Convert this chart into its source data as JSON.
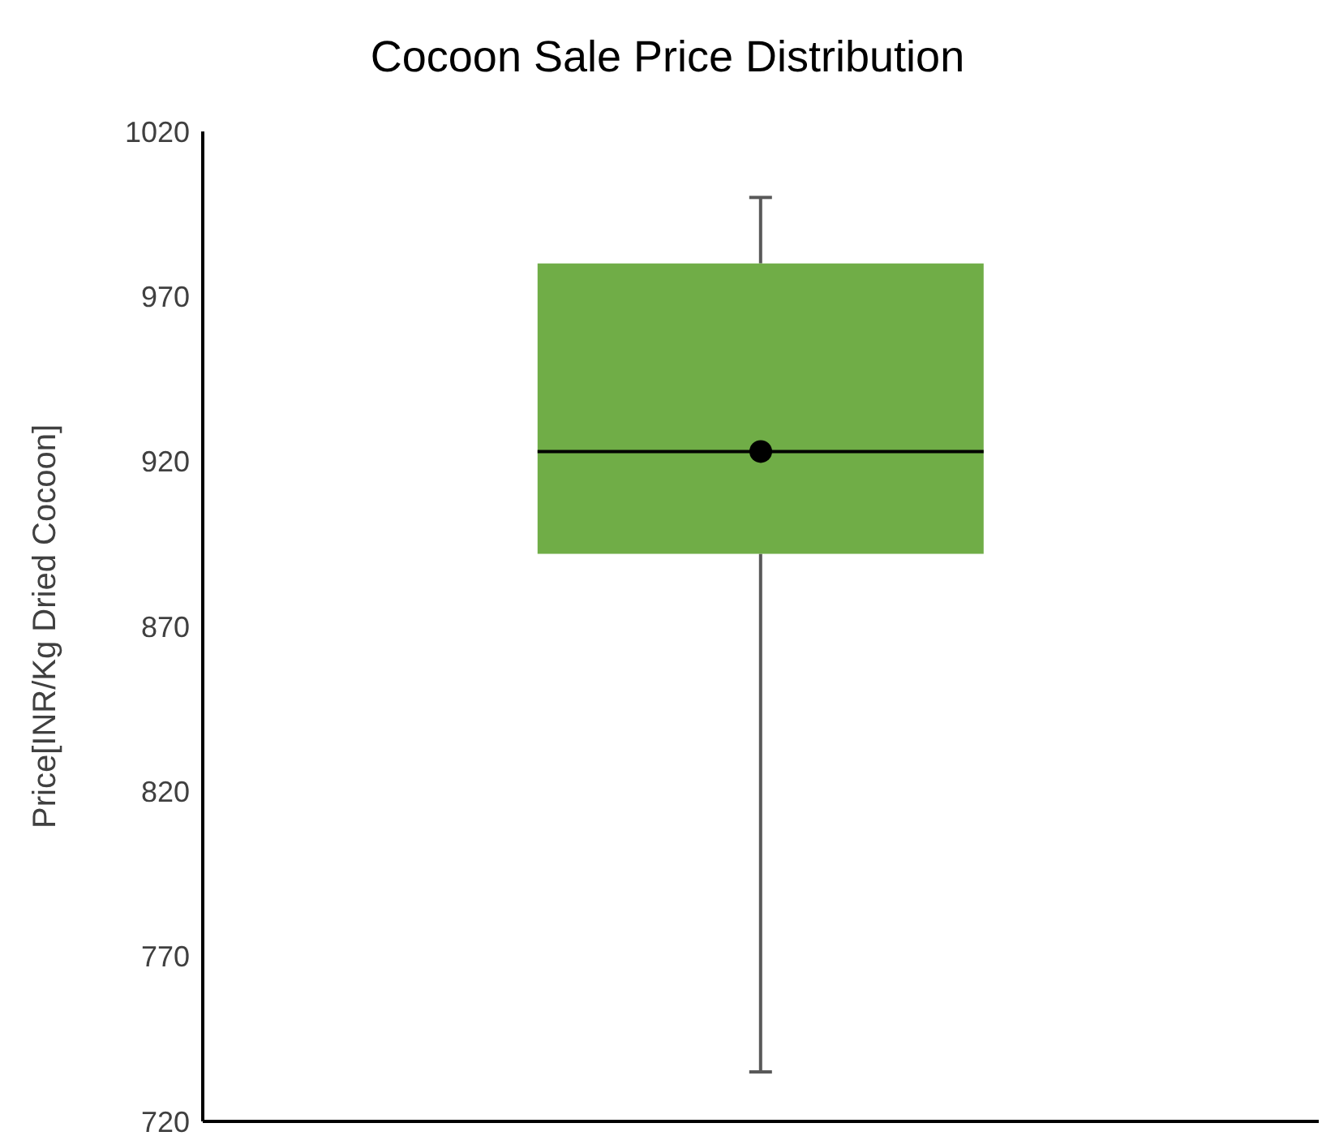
{
  "chart_data": {
    "type": "box",
    "title": "Cocoon Sale Price Distribution",
    "ylabel": "Price[INR/Kg Dried Cocoon]",
    "categories": [
      null
    ],
    "boxes": [
      {
        "low": 735,
        "q1": 892,
        "median": 923,
        "q3": 980,
        "high": 1000,
        "mean": 923
      }
    ],
    "color": "#70ad47",
    "ylim": [
      720,
      1020
    ],
    "yticks": [
      720,
      770,
      820,
      870,
      920,
      970,
      1020
    ],
    "grid": false,
    "legend": false,
    "tick_labels": "y"
  }
}
